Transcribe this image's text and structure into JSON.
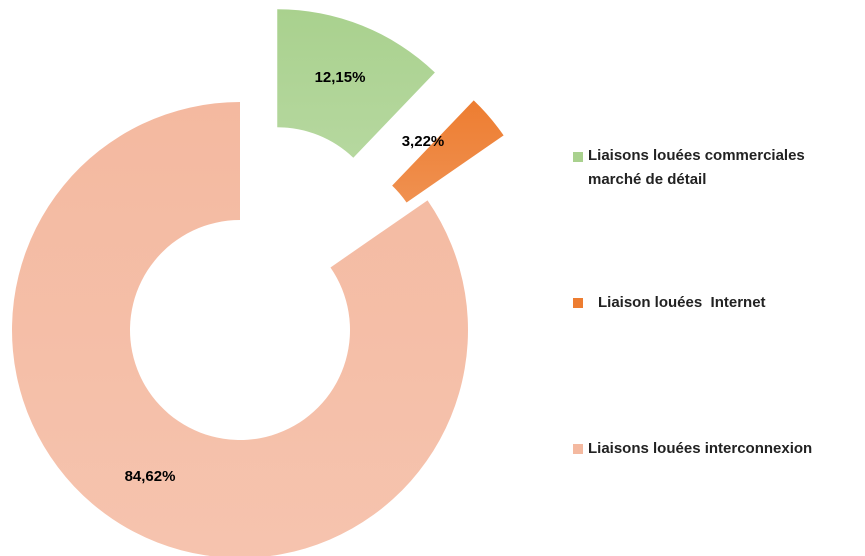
{
  "chart_data": {
    "type": "pie",
    "categories": [
      "Liaisons louées commerciales marché de détail",
      "Liaison louées  Internet",
      "Liaisons louées interconnexion"
    ],
    "values": [
      12.15,
      3.22,
      84.62
    ],
    "value_labels": [
      "12,15%",
      "3,22%",
      "84,62%"
    ],
    "colors": [
      "#a9d18e",
      "#ed7d31",
      "#f4b9a0"
    ],
    "legend": "right"
  }
}
